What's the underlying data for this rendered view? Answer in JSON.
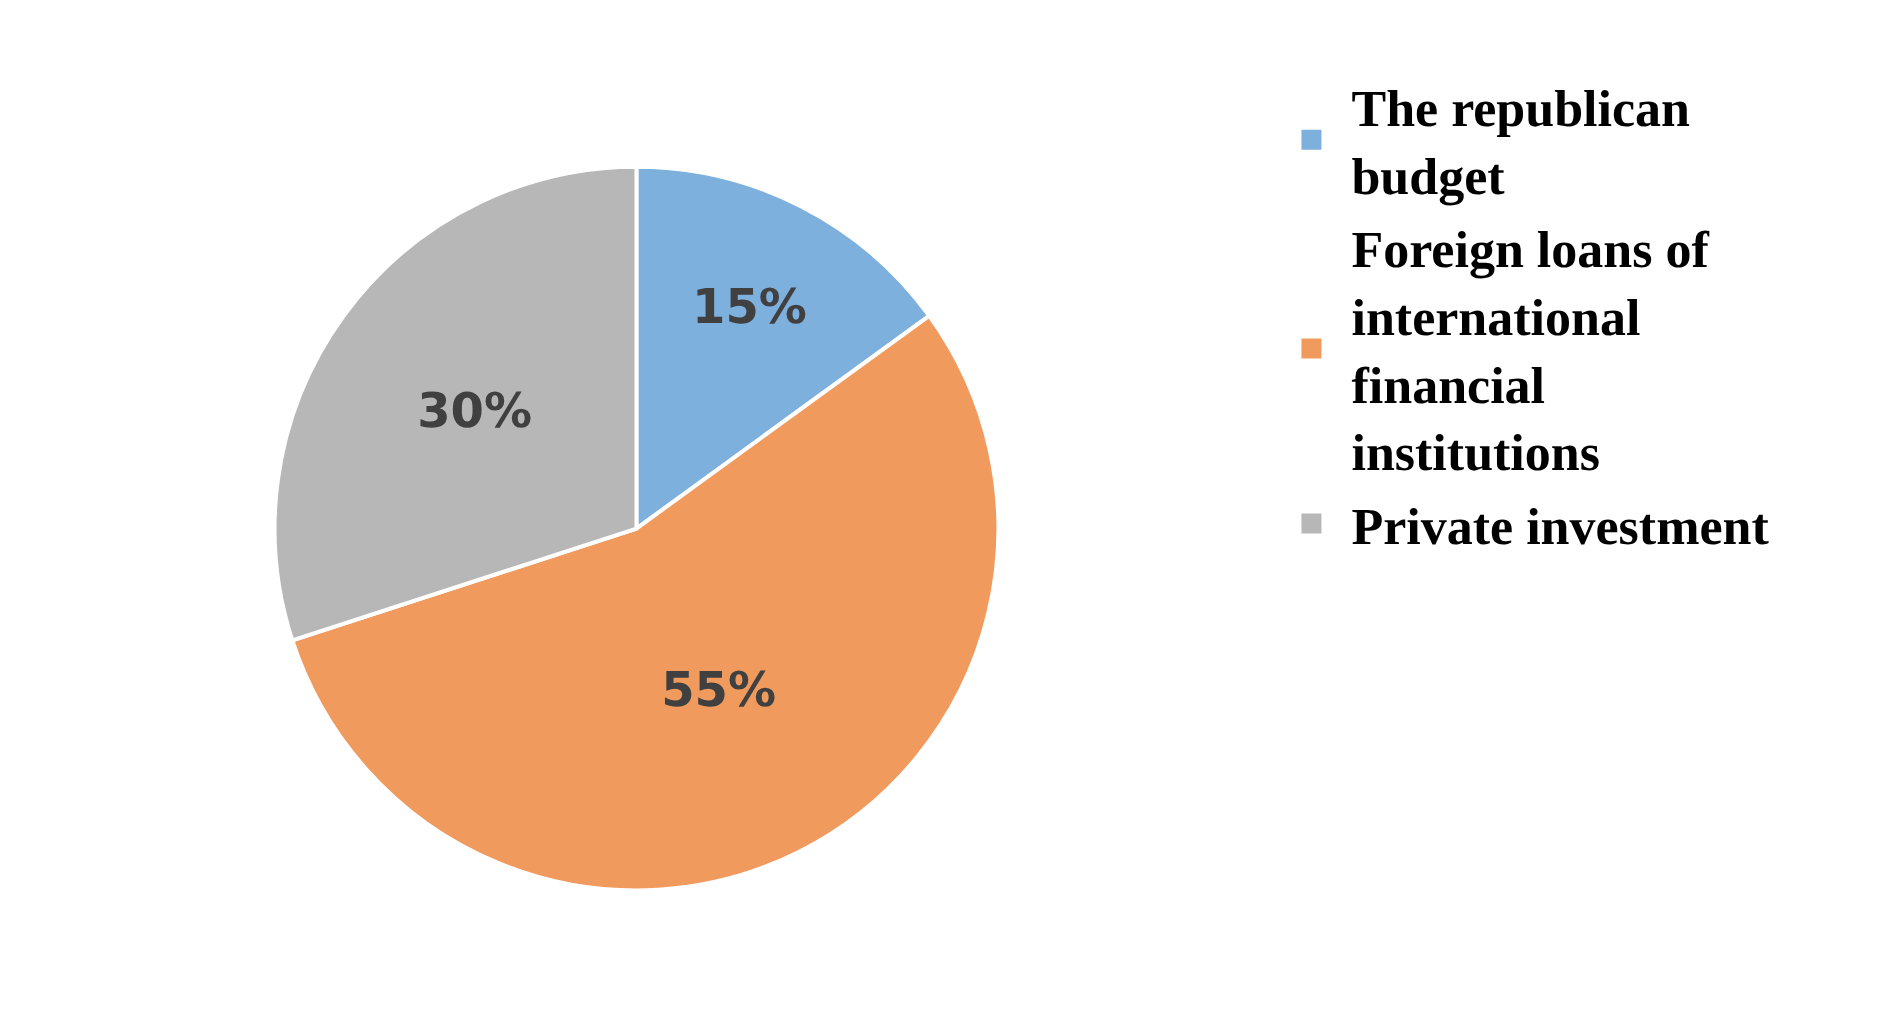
{
  "chart_data": {
    "type": "pie",
    "categories": [
      "The republican budget",
      "Foreign loans of international financial institutions",
      "Private investment"
    ],
    "values": [
      15,
      55,
      30
    ],
    "value_labels": [
      "15%",
      "55%",
      "30%"
    ],
    "colors": [
      "#7eb0de",
      "#f09a5e",
      "#b7b7b7"
    ],
    "legend": "right"
  }
}
